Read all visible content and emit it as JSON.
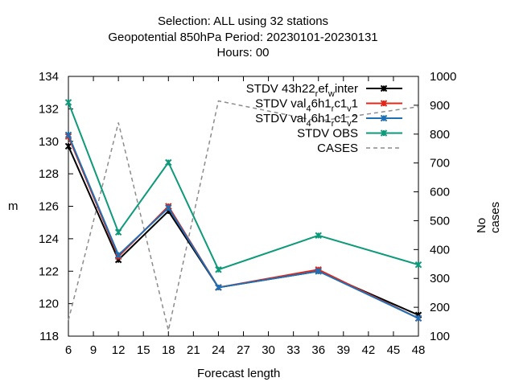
{
  "header": {
    "title_line1": "Selection: ALL using    32 stations",
    "title_line2": "Geopotential 850hPa   Period: 20230101-20230131",
    "title_line3": "Hours:  00"
  },
  "chart_data": {
    "type": "line",
    "title": "Selection: ALL using    32 stations / Geopotential 850hPa   Period: 20230101-20230131 / Hours:  00",
    "xlabel": "Forecast length",
    "ylabel": "m",
    "y2label": "No cases",
    "xlim": [
      6,
      48
    ],
    "ylim": [
      118,
      134
    ],
    "y2lim": [
      100,
      1000
    ],
    "x_ticks": [
      "6",
      "9",
      "12",
      "15",
      "18",
      "21",
      "24",
      "27",
      "30",
      "33",
      "36",
      "39",
      "42",
      "45",
      "48"
    ],
    "y_ticks": [
      "118",
      "120",
      "122",
      "124",
      "126",
      "128",
      "130",
      "132",
      "134"
    ],
    "y2_ticks": [
      "100",
      "200",
      "300",
      "400",
      "500",
      "600",
      "700",
      "800",
      "900",
      "1000"
    ],
    "x": [
      6,
      12,
      18,
      24,
      36,
      48
    ],
    "legend_position": "top-right",
    "grid": false,
    "series": [
      {
        "name": "STDV 43h22_ref_winter",
        "legend_base": "STDV 43h22",
        "legend_subs": [
          [
            "r",
            "ef"
          ],
          [
            "w",
            "inter"
          ]
        ],
        "color": "#000000",
        "axis": "y",
        "marker": "x",
        "values": [
          129.7,
          122.7,
          125.7,
          121.0,
          122.0,
          119.3
        ]
      },
      {
        "name": "STDV val_46h1_rc1_v1",
        "legend_base": "STDV val",
        "legend_subs": [
          [
            "4",
            "6h1"
          ],
          [
            "r",
            "c1"
          ],
          [
            "v",
            "1"
          ]
        ],
        "color": "#e0281a",
        "axis": "y",
        "marker": "x",
        "values": [
          130.3,
          122.9,
          126.0,
          121.0,
          122.1,
          119.1
        ]
      },
      {
        "name": "STDV val_46h1_rc1_v2",
        "legend_base": "STDV val",
        "legend_subs": [
          [
            "4",
            "6h1"
          ],
          [
            "r",
            "c1"
          ],
          [
            "v",
            "2"
          ]
        ],
        "color": "#1f6fb5",
        "axis": "y",
        "marker": "x",
        "values": [
          130.4,
          123.0,
          125.9,
          121.0,
          122.0,
          119.1
        ]
      },
      {
        "name": "STDV OBS",
        "legend_base": "STDV OBS",
        "legend_subs": [],
        "color": "#0e9a7a",
        "axis": "y",
        "marker": "x",
        "values": [
          132.4,
          124.4,
          128.7,
          122.1,
          124.2,
          122.4
        ]
      },
      {
        "name": "CASES",
        "legend_base": "CASES",
        "legend_subs": [],
        "color": "#8c8c8c",
        "axis": "y2",
        "marker": "none",
        "dashed": true,
        "x": [
          6,
          12,
          18,
          24,
          36,
          48
        ],
        "values": [
          155,
          840,
          120,
          915,
          845,
          895
        ]
      }
    ]
  }
}
